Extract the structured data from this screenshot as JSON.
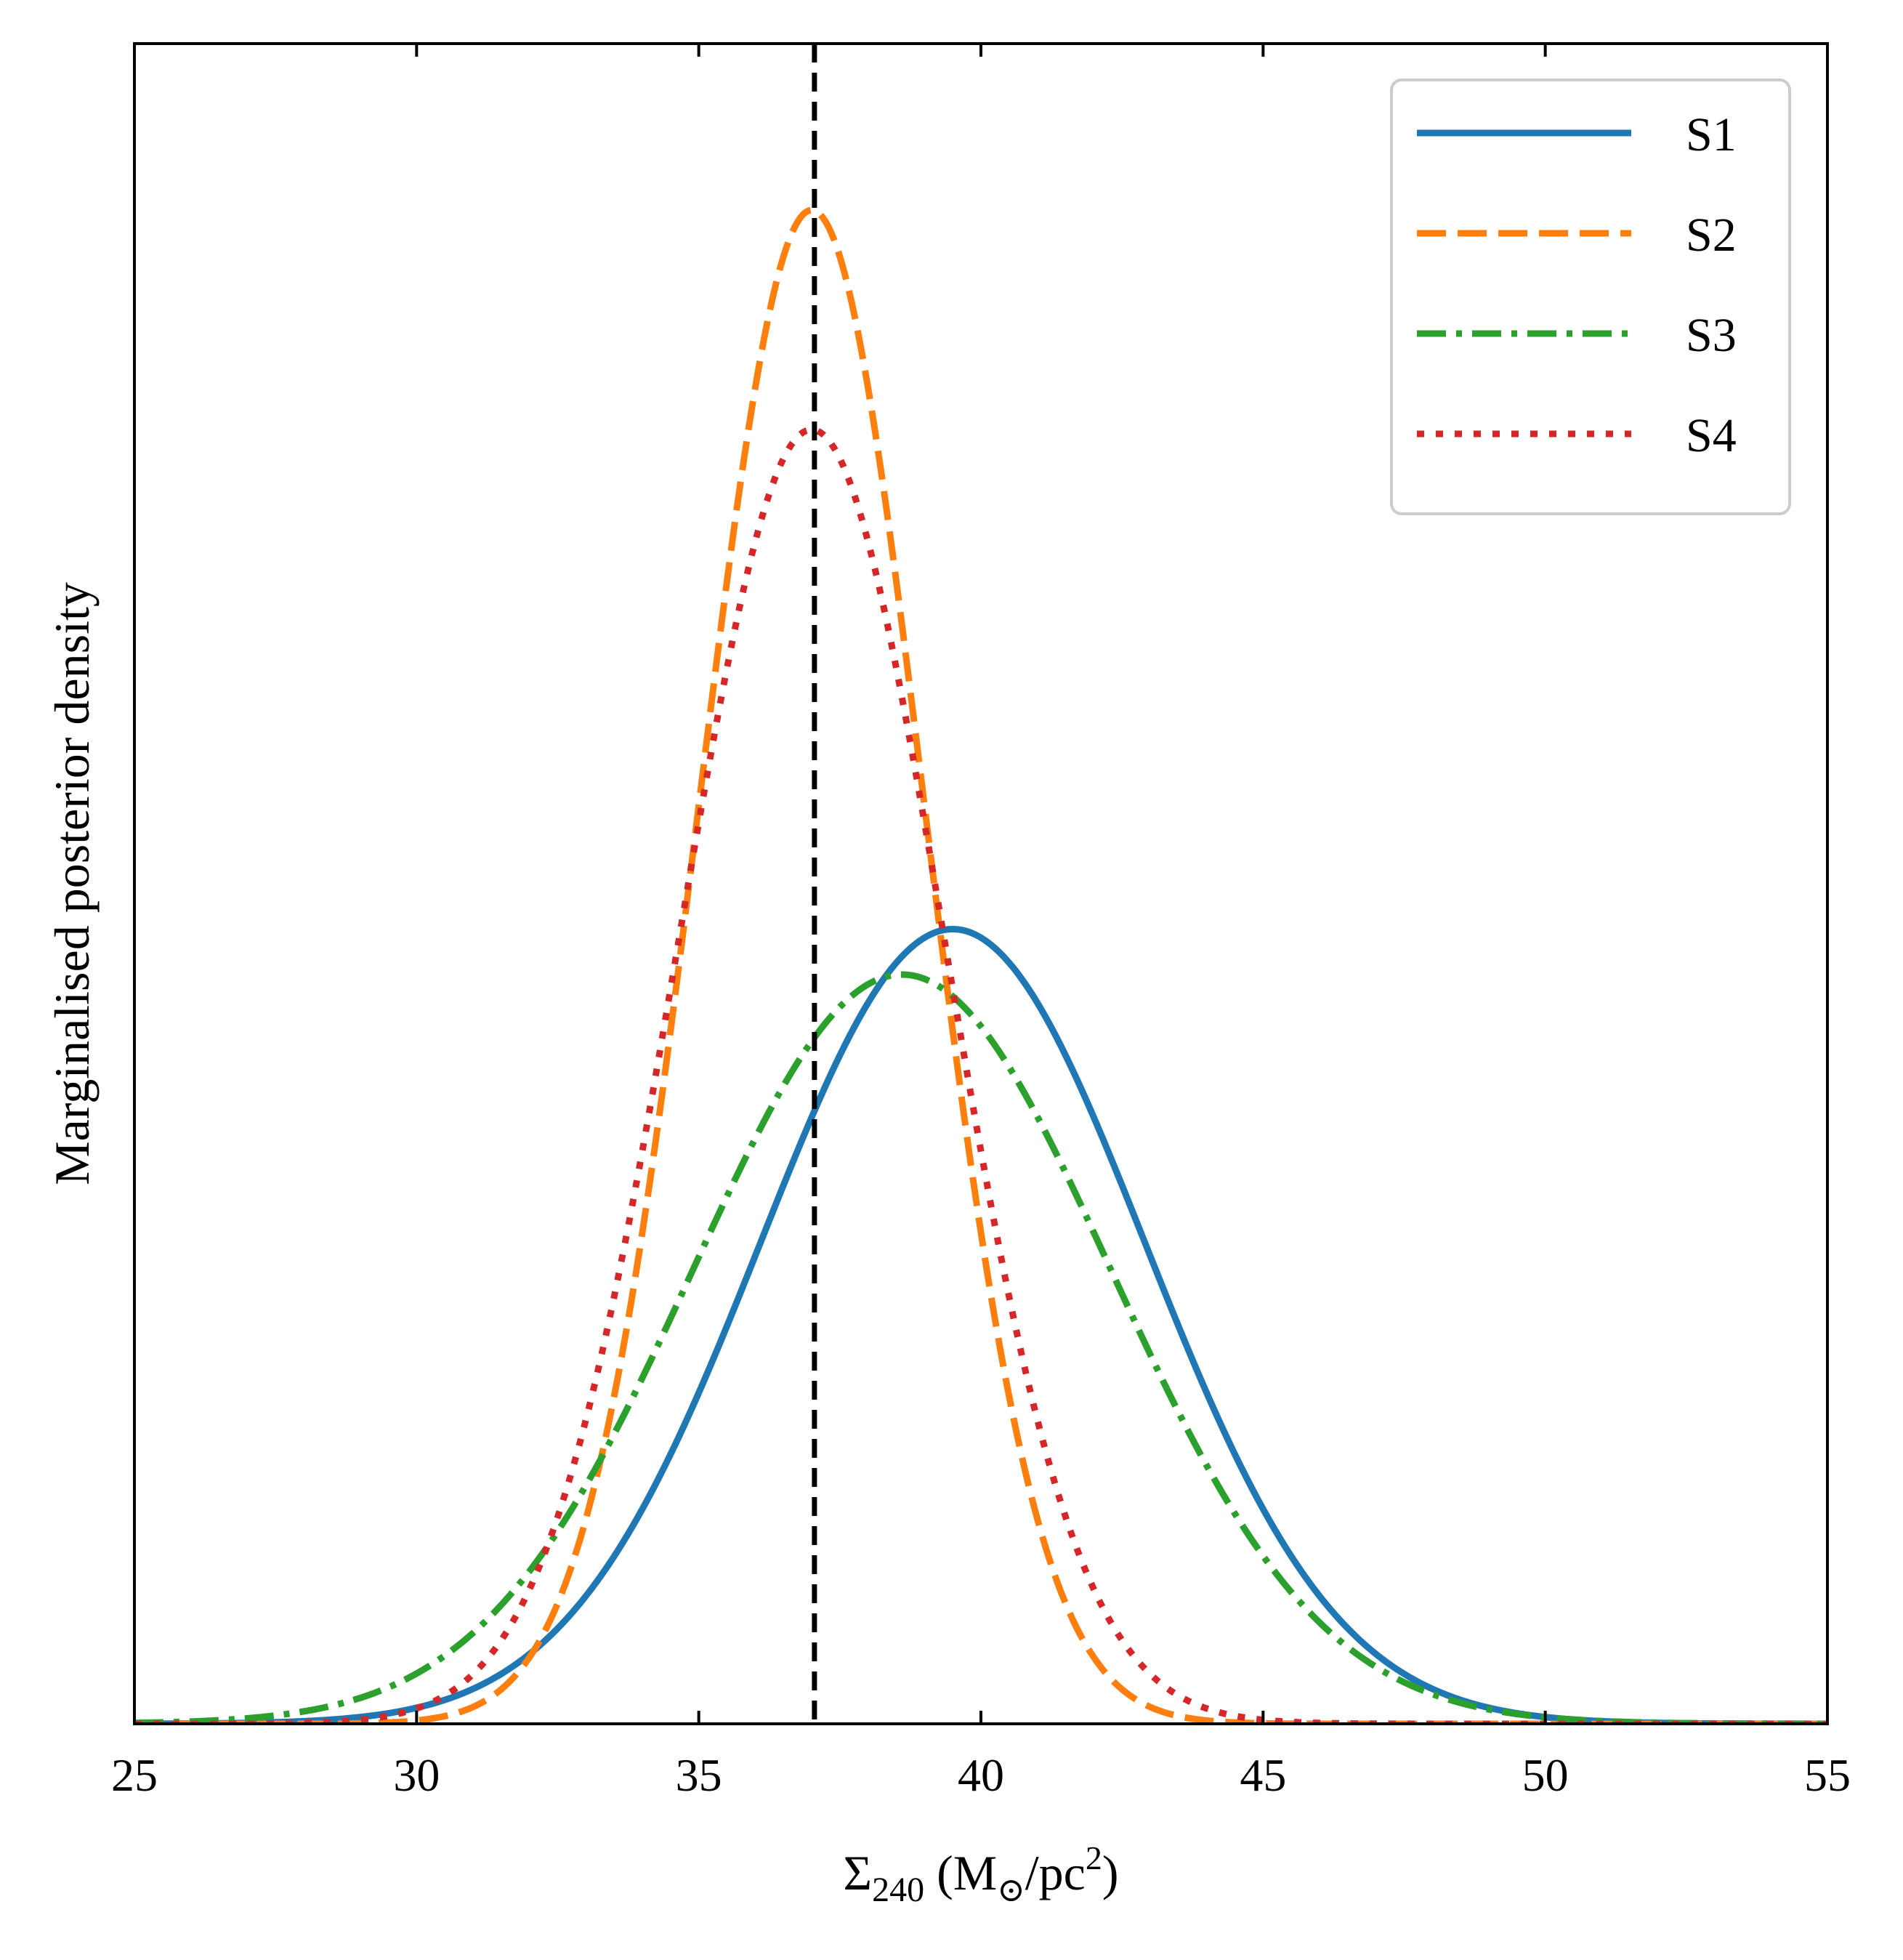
{
  "chart_data": {
    "type": "line",
    "title": "",
    "xlabel": "Σ240 (M⊙/pc2)",
    "xlabel_parts": {
      "sym": "Σ",
      "sub": "240",
      "mid": " (M",
      "odot": "⊙",
      "unit": "/pc",
      "sup": "2",
      "end": ")"
    },
    "ylabel": "Marginalised posterior density",
    "xlim": [
      25,
      55
    ],
    "ylim": [
      0,
      1.11
    ],
    "x_ticks": [
      25,
      30,
      35,
      40,
      45,
      50,
      55
    ],
    "x_tick_labels": [
      "25",
      "30",
      "35",
      "40",
      "45",
      "50",
      "55"
    ],
    "grid": false,
    "legend_position": "top-right",
    "reference_line": {
      "x": 37.05,
      "style": "dashed",
      "color": "#000000"
    },
    "series": [
      {
        "name": "S1",
        "color": "#1f77b4",
        "style": "solid",
        "mean": 39.5,
        "sigma": 3.4,
        "peak": 0.525
      },
      {
        "name": "S2",
        "color": "#ff7f0e",
        "style": "dashed",
        "mean": 37.0,
        "sigma": 2.0,
        "peak": 1.0
      },
      {
        "name": "S3",
        "color": "#2ca02c",
        "style": "dashdot",
        "mean": 38.6,
        "sigma": 3.7,
        "peak": 0.495
      },
      {
        "name": "S4",
        "color": "#d62728",
        "style": "dotted",
        "mean": 37.0,
        "sigma": 2.35,
        "peak": 0.855
      }
    ]
  }
}
